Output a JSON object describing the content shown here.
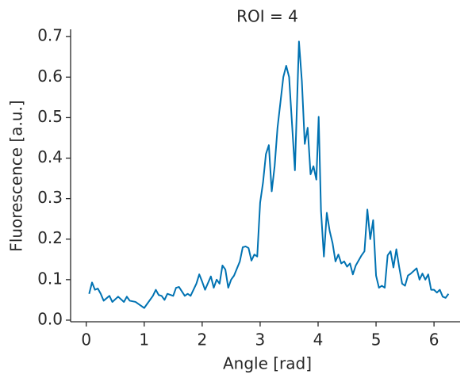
{
  "chart_data": {
    "type": "line",
    "title": "ROI = 4",
    "xlabel": "Angle [rad]",
    "ylabel": "Fluorescence [a.u.]",
    "x": [
      0.05,
      0.1,
      0.15,
      0.2,
      0.25,
      0.3,
      0.4,
      0.45,
      0.55,
      0.65,
      0.7,
      0.75,
      0.85,
      0.95,
      1.0,
      1.05,
      1.15,
      1.2,
      1.25,
      1.3,
      1.35,
      1.4,
      1.5,
      1.55,
      1.6,
      1.7,
      1.75,
      1.8,
      1.9,
      1.95,
      2.0,
      2.05,
      2.15,
      2.2,
      2.25,
      2.3,
      2.35,
      2.4,
      2.45,
      2.5,
      2.55,
      2.65,
      2.7,
      2.75,
      2.8,
      2.85,
      2.9,
      2.95,
      3.0,
      3.05,
      3.1,
      3.15,
      3.2,
      3.25,
      3.3,
      3.4,
      3.45,
      3.5,
      3.6,
      3.67,
      3.72,
      3.77,
      3.82,
      3.87,
      3.92,
      3.97,
      4.01,
      4.05,
      4.1,
      4.15,
      4.2,
      4.25,
      4.3,
      4.35,
      4.4,
      4.45,
      4.5,
      4.55,
      4.6,
      4.65,
      4.75,
      4.8,
      4.85,
      4.9,
      4.95,
      5.0,
      5.05,
      5.1,
      5.15,
      5.2,
      5.25,
      5.3,
      5.35,
      5.4,
      5.45,
      5.5,
      5.55,
      5.6,
      5.7,
      5.75,
      5.8,
      5.85,
      5.9,
      5.95,
      6.0,
      6.05,
      6.1,
      6.15,
      6.2,
      6.25
    ],
    "values": [
      0.065,
      0.093,
      0.075,
      0.078,
      0.065,
      0.048,
      0.06,
      0.045,
      0.058,
      0.045,
      0.058,
      0.048,
      0.045,
      0.035,
      0.03,
      0.04,
      0.06,
      0.075,
      0.062,
      0.06,
      0.05,
      0.065,
      0.06,
      0.08,
      0.082,
      0.06,
      0.065,
      0.06,
      0.09,
      0.113,
      0.095,
      0.075,
      0.108,
      0.08,
      0.1,
      0.09,
      0.135,
      0.125,
      0.08,
      0.1,
      0.11,
      0.145,
      0.18,
      0.182,
      0.178,
      0.147,
      0.162,
      0.157,
      0.29,
      0.34,
      0.41,
      0.432,
      0.318,
      0.38,
      0.475,
      0.6,
      0.628,
      0.6,
      0.37,
      0.688,
      0.59,
      0.435,
      0.475,
      0.36,
      0.38,
      0.347,
      0.502,
      0.27,
      0.157,
      0.265,
      0.22,
      0.19,
      0.145,
      0.162,
      0.14,
      0.145,
      0.132,
      0.14,
      0.113,
      0.135,
      0.16,
      0.17,
      0.273,
      0.2,
      0.247,
      0.11,
      0.08,
      0.085,
      0.08,
      0.16,
      0.17,
      0.13,
      0.175,
      0.13,
      0.09,
      0.085,
      0.11,
      0.115,
      0.128,
      0.1,
      0.115,
      0.1,
      0.113,
      0.075,
      0.075,
      0.068,
      0.075,
      0.058,
      0.055,
      0.065
    ],
    "color": "#0072b2",
    "xlim": [
      -0.27,
      6.45
    ],
    "xticks": [
      0,
      1,
      2,
      3,
      4,
      5,
      6
    ],
    "ylim": [
      -0.004,
      0.718
    ],
    "yticks": [
      {
        "value": 0,
        "label": "0.0"
      },
      0.1,
      0.2,
      0.3,
      0.4,
      0.5,
      0.6,
      0.7
    ]
  }
}
